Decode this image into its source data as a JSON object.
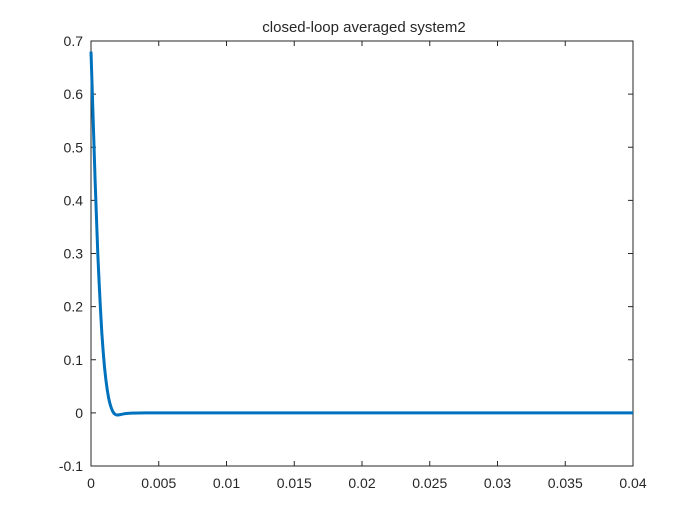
{
  "chart_data": {
    "type": "line",
    "title": "closed-loop averaged system2",
    "xlabel": "",
    "ylabel": "",
    "xlim": [
      0,
      0.04
    ],
    "ylim": [
      -0.1,
      0.7
    ],
    "x_ticks": [
      0,
      0.005,
      0.01,
      0.015,
      0.02,
      0.025,
      0.03,
      0.035,
      0.04
    ],
    "x_tick_labels": [
      "0",
      "0.005",
      "0.01",
      "0.015",
      "0.02",
      "0.025",
      "0.03",
      "0.035",
      "0.04"
    ],
    "y_ticks": [
      -0.1,
      0,
      0.1,
      0.2,
      0.3,
      0.4,
      0.5,
      0.6,
      0.7
    ],
    "y_tick_labels": [
      "-0.1",
      "0",
      "0.1",
      "0.2",
      "0.3",
      "0.4",
      "0.5",
      "0.6",
      "0.7"
    ],
    "grid": false,
    "legend": "none",
    "colors": {
      "line": "#0072BD",
      "axes": "#262626",
      "background": "#ffffff"
    },
    "series": [
      {
        "x": [
          0,
          0.0001,
          0.0002,
          0.0003,
          0.0004,
          0.0005,
          0.0006,
          0.0007,
          0.0008,
          0.0009,
          0.001,
          0.0011,
          0.0012,
          0.0013,
          0.0014,
          0.0015,
          0.0016,
          0.0017,
          0.0018,
          0.0019,
          0.002,
          0.0021,
          0.0022,
          0.0023,
          0.0024,
          0.0025,
          0.0027,
          0.003,
          0.0035,
          0.004,
          0.005,
          0.006,
          0.008,
          0.01,
          0.015,
          0.02,
          0.025,
          0.03,
          0.035,
          0.04
        ],
        "y": [
          0.68,
          0.6,
          0.52,
          0.44,
          0.37,
          0.3,
          0.245,
          0.195,
          0.15,
          0.115,
          0.085,
          0.062,
          0.043,
          0.028,
          0.017,
          0.009,
          0.003,
          -0.001,
          -0.003,
          -0.004,
          -0.004,
          -0.0035,
          -0.003,
          -0.0025,
          -0.002,
          -0.0015,
          -0.001,
          -0.0005,
          -0.0002,
          0,
          0,
          0,
          0,
          0,
          0,
          0,
          0,
          0,
          0,
          0
        ]
      }
    ]
  }
}
